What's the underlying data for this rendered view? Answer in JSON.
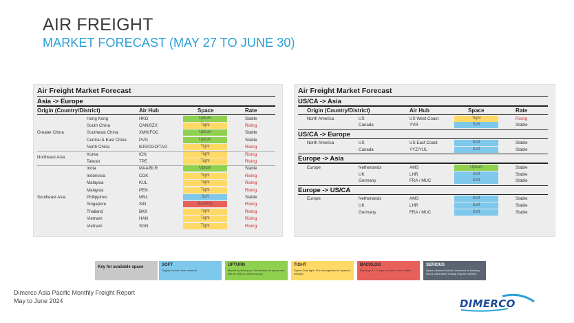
{
  "header": {
    "title": "AIR FREIGHT",
    "subtitle": "MARKET FORECAST (MAY 27 TO JUNE 30)"
  },
  "colors": {
    "Upturn": "#8fd14f",
    "Tight": "#ffd966",
    "Soft": "#7ec8ec",
    "Backlog": "#e8605a"
  },
  "columns": {
    "origin": "Origin (Country/District)",
    "hub": "Air Hub",
    "space": "Space",
    "rate": "Rate"
  },
  "left": {
    "panel_title": "Air Freight Market Forecast",
    "section": "Asia -> Europe",
    "groups": [
      {
        "name": "Greater China",
        "rows": [
          {
            "country": "Hong Kong",
            "hub": "HKG",
            "space": "Upturn",
            "rate": "Stable"
          },
          {
            "country": "South China",
            "hub": "CAN/SZX",
            "space": "Tight",
            "rate": "Rising"
          },
          {
            "country": "Southeast China",
            "hub": "XMN/FOC",
            "space": "Upturn",
            "rate": "Stable"
          },
          {
            "country": "Central & East China",
            "hub": "PVG",
            "space": "Upturn",
            "rate": "Stable"
          },
          {
            "country": "North China",
            "hub": "BJS/CGO/TAO",
            "space": "Tight",
            "rate": "Rising"
          }
        ]
      },
      {
        "name": "Northeast Asia",
        "rows": [
          {
            "country": "Korea",
            "hub": "ICN",
            "space": "Tight",
            "rate": "Rising"
          },
          {
            "country": "Taiwan",
            "hub": "TPE",
            "space": "Tight",
            "rate": "Rising"
          }
        ]
      },
      {
        "name": "Southeast Asia",
        "rows": [
          {
            "country": "India",
            "hub": "MAA/BLR",
            "space": "Upturn",
            "rate": "Stable"
          },
          {
            "country": "Indonesia",
            "hub": "CGK",
            "space": "Tight",
            "rate": "Rising"
          },
          {
            "country": "Malaysia",
            "hub": "KUL",
            "space": "Tight",
            "rate": "Rising"
          },
          {
            "country": "Malaysia",
            "hub": "PEN",
            "space": "Tight",
            "rate": "Rising"
          },
          {
            "country": "Philippines",
            "hub": "MNL",
            "space": "Soft",
            "rate": "Stable"
          },
          {
            "country": "Singapore",
            "hub": "SIN",
            "space": "Backlog",
            "rate": "Rising"
          },
          {
            "country": "Thailand",
            "hub": "BKK",
            "space": "Tight",
            "rate": "Rising"
          },
          {
            "country": "Vietnam",
            "hub": "HAN",
            "space": "Tight",
            "rate": "Rising"
          },
          {
            "country": "Vietnam",
            "hub": "SGN",
            "space": "Tight",
            "rate": "Rising"
          }
        ]
      }
    ]
  },
  "right": {
    "panel_title": "Air Freight Market Forecast",
    "sections": [
      {
        "title": "US/CA -> Asia",
        "group": "North America",
        "rows": [
          {
            "country": "US",
            "hub": "US West Coast",
            "space": "Tight",
            "rate": "Rising"
          },
          {
            "country": "Canada",
            "hub": "YVR",
            "space": "Soft",
            "rate": "Stable"
          }
        ]
      },
      {
        "title": "US/CA -> Europe",
        "group": "North America",
        "rows": [
          {
            "country": "US",
            "hub": "US East Coast",
            "space": "Soft",
            "rate": "Stable"
          },
          {
            "country": "Canada",
            "hub": "YYZ/YUL",
            "space": "Soft",
            "rate": "Stable"
          }
        ]
      },
      {
        "title": "Europe -> Asia",
        "group": "Europe",
        "rows": [
          {
            "country": "Netherlands",
            "hub": "AMS",
            "space": "Upturn",
            "rate": "Stable"
          },
          {
            "country": "UK",
            "hub": "LHR",
            "space": "Soft",
            "rate": "Stable"
          },
          {
            "country": "Germany",
            "hub": "FRA / MUC",
            "space": "Soft",
            "rate": "Stable"
          }
        ]
      },
      {
        "title": "Europe -> US/CA",
        "group": "Europe",
        "rows": [
          {
            "country": "Netherlands",
            "hub": "AMS",
            "space": "Soft",
            "rate": "Stable"
          },
          {
            "country": "UK",
            "hub": "LHR",
            "space": "Soft",
            "rate": "Stable"
          },
          {
            "country": "Germany",
            "hub": "FRA / MUC",
            "space": "Soft",
            "rate": "Stable"
          }
        ]
      }
    ]
  },
  "legend": {
    "key_label": "Key for available space",
    "items": [
      {
        "title": "SOFT",
        "desc": "Supply is more than demand",
        "color": "#7ec8ec"
      },
      {
        "title": "UPTURN",
        "desc": "Market is picking up, but demand of space can still be met by current supply.",
        "color": "#8fd14f"
      },
      {
        "title": "TIGHT",
        "desc": "Space Gets tight, Pre-arrangement of space is needed.",
        "color": "#ffd966"
      },
      {
        "title": "BACKLOG",
        "desc": "Backlog of 1-3 days is found in the market",
        "color": "#e8605a"
      },
      {
        "title": "SERIOUS",
        "desc": "Space demand critical, turndown of booking found. Alternative routing may be needed.",
        "color": "#5a6470"
      }
    ]
  },
  "footer": {
    "line1": "Dimerco Asia Pacific Monthly Freight Report",
    "line2": "May to June 2024",
    "logo": "DIMERCO"
  }
}
